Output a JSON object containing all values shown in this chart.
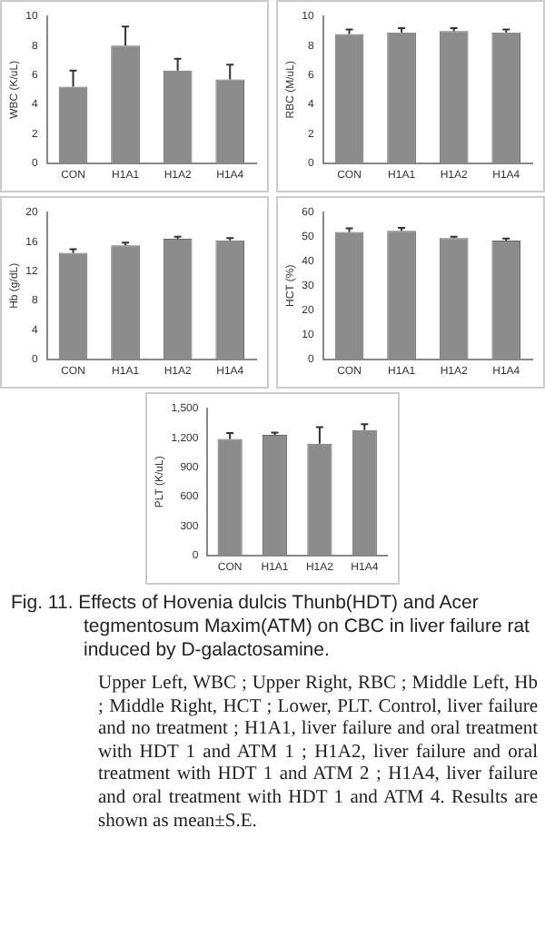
{
  "chart_data": [
    {
      "type": "bar",
      "ylabel": "WBC (K/uL)",
      "categories": [
        "CON",
        "H1A1",
        "H1A2",
        "H1A4"
      ],
      "values": [
        5.2,
        8.0,
        6.3,
        5.7
      ],
      "errors": [
        [
          5.2,
          6.3
        ],
        [
          8.0,
          9.3
        ],
        [
          6.3,
          7.1
        ],
        [
          5.7,
          6.7
        ]
      ],
      "color": "#8c8c8c",
      "ylim": [
        0,
        10
      ],
      "yticks": [
        0,
        2,
        4,
        6,
        8,
        10
      ]
    },
    {
      "type": "bar",
      "ylabel": "RBC (M/uL)",
      "categories": [
        "CON",
        "H1A1",
        "H1A2",
        "H1A4"
      ],
      "values": [
        8.8,
        8.9,
        9.0,
        8.9
      ],
      "errors": [
        [
          8.8,
          9.1
        ],
        [
          8.9,
          9.2
        ],
        [
          9.0,
          9.2
        ],
        [
          8.9,
          9.1
        ]
      ],
      "color": "#8c8c8c",
      "ylim": [
        0,
        10
      ],
      "yticks": [
        0,
        2,
        4,
        6,
        8,
        10
      ]
    },
    {
      "type": "bar",
      "ylabel": "Hb (g/dL)",
      "categories": [
        "CON",
        "H1A1",
        "H1A2",
        "H1A4"
      ],
      "values": [
        14.5,
        15.5,
        16.4,
        16.2
      ],
      "errors": [
        [
          14.5,
          15.0
        ],
        [
          15.5,
          15.9
        ],
        [
          16.4,
          16.7
        ],
        [
          16.2,
          16.5
        ]
      ],
      "color": "#8c8c8c",
      "ylim": [
        0,
        20
      ],
      "yticks": [
        0,
        4,
        8,
        12,
        16,
        20
      ]
    },
    {
      "type": "bar",
      "ylabel": "HCT (%)",
      "categories": [
        "CON",
        "H1A1",
        "H1A2",
        "H1A4"
      ],
      "values": [
        52,
        52.5,
        49.5,
        48.5
      ],
      "errors": [
        [
          52,
          53.5
        ],
        [
          52.5,
          53.7
        ],
        [
          49.5,
          50.1
        ],
        [
          48.5,
          49.3
        ]
      ],
      "color": "#8c8c8c",
      "ylim": [
        0,
        60
      ],
      "yticks": [
        0,
        10,
        20,
        30,
        40,
        50,
        60
      ]
    },
    {
      "type": "bar",
      "ylabel": "PLT (K/uL)",
      "categories": [
        "CON",
        "H1A1",
        "H1A2",
        "H1A4"
      ],
      "values": [
        1190,
        1230,
        1140,
        1280
      ],
      "errors": [
        [
          1190,
          1250
        ],
        [
          1230,
          1255
        ],
        [
          1140,
          1310
        ],
        [
          1280,
          1340
        ]
      ],
      "color": "#8c8c8c",
      "ylim": [
        0,
        1500
      ],
      "yticks": [
        0,
        {
          "value": 300,
          "label": "300"
        },
        {
          "value": 600,
          "label": "600"
        },
        {
          "value": 900,
          "label": "900"
        },
        {
          "value": 1200,
          "label": "1,200"
        },
        {
          "value": 1500,
          "label": "1,500"
        }
      ],
      "annotations": [
        "Fig. 11. Effects of Hovenia dulcis Thunb(HDT) and Acer tegmentosum Maxim(ATM) on CBC in liver failure rat induced by D-galactosamine.",
        "Upper Left, WBC ; Upper Right, RBC ; Middle Left, Hb ; Middle Right, HCT ; Lower, PLT. Control, liver failure and no treatment ; H1A1, liver failure and oral treatment with HDT 1 and ATM 1 ; H1A2, liver failure and oral treatment with HDT 1 and ATM 2 ; H1A4, liver failure and oral treatment with HDT 1 and ATM 4. Results are shown as mean±S.E."
      ]
    }
  ]
}
